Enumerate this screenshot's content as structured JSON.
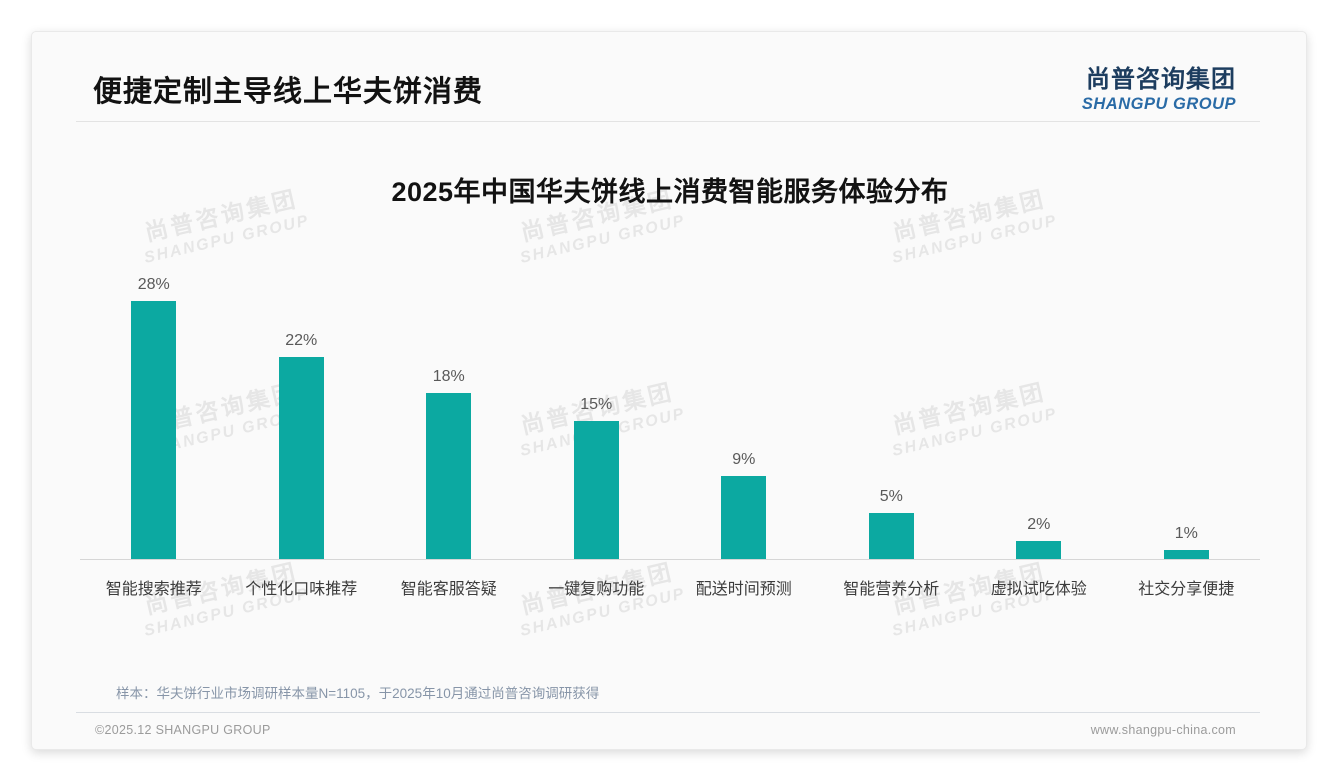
{
  "header": {
    "title": "便捷定制主导线上华夫饼消费",
    "logo_cn": "尚普咨询集团",
    "logo_en": "SHANGPU GROUP"
  },
  "watermark": {
    "cn": "尚普咨询集团",
    "en": "SHANGPU GROUP",
    "grid_cols": [
      222,
      598,
      970
    ],
    "grid_rows": [
      222,
      415,
      595
    ]
  },
  "chart_data": {
    "type": "bar",
    "title": "2025年中国华夫饼线上消费智能服务体验分布",
    "categories": [
      "智能搜索推荐",
      "个性化口味推荐",
      "智能客服答疑",
      "一键复购功能",
      "配送时间预测",
      "智能营养分析",
      "虚拟试吃体验",
      "社交分享便捷"
    ],
    "values": [
      28,
      22,
      18,
      15,
      9,
      5,
      2,
      1
    ],
    "unit": "%",
    "xlabel": "",
    "ylabel": "",
    "ylim": [
      0,
      30
    ],
    "grid": false,
    "legend": "none",
    "data_labels": true,
    "bar_color": "#0CA9A1"
  },
  "footnote": {
    "text": "样本：华夫饼行业市场调研样本量N=1105，于2025年10月通过尚普咨询调研获得"
  },
  "footer": {
    "copyright": "©2025.12 SHANGPU GROUP",
    "website": "www.shangpu-china.com"
  },
  "colors": {
    "bar": "#0CA9A1",
    "title_text": "#121212",
    "logo_cn": "#1d3d5f",
    "logo_en": "#2a6ba6",
    "value_label": "#595959",
    "category_label": "#3c3c3c",
    "sample_note": "#8795a8",
    "footer_text": "#9b9b9b",
    "card_bg": "#fafafa"
  }
}
